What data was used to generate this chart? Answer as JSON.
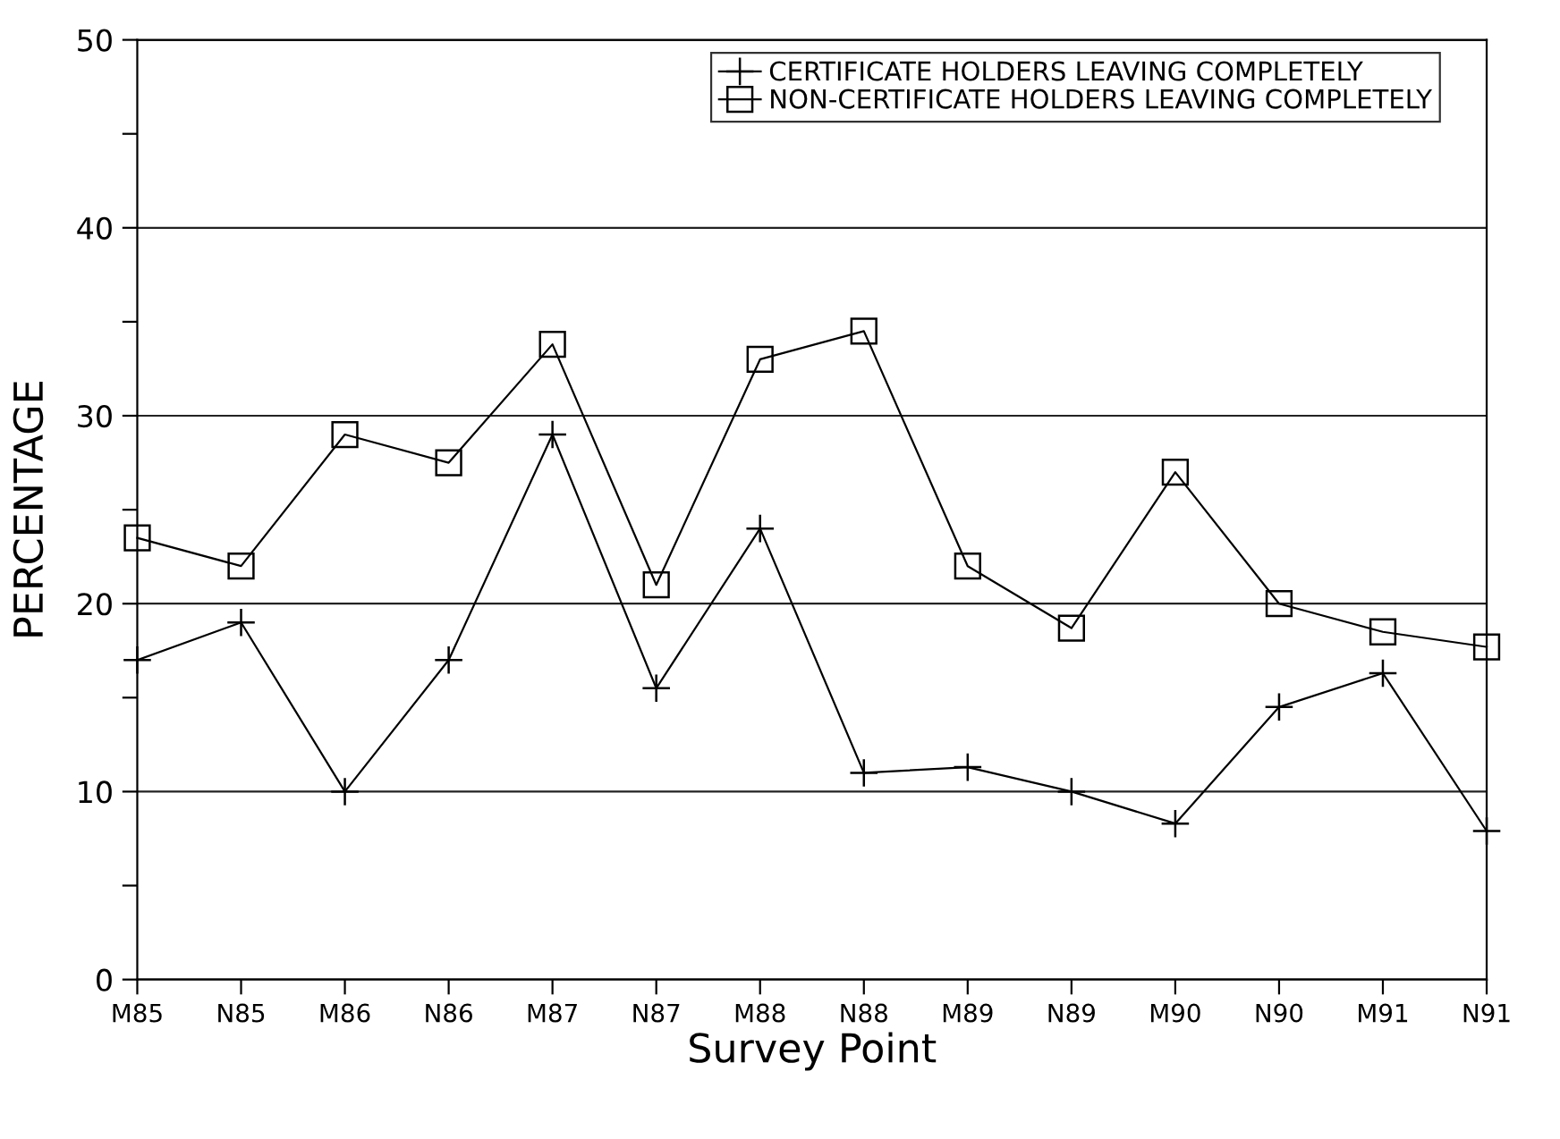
{
  "chart_data": {
    "type": "line",
    "xlabel": "Survey Point",
    "ylabel": "PERCENTAGE",
    "categories": [
      "M85",
      "N85",
      "M86",
      "N86",
      "M87",
      "N87",
      "M88",
      "N88",
      "M89",
      "N89",
      "M90",
      "N90",
      "M91",
      "N91"
    ],
    "series": [
      {
        "name": "CERTIFICATE HOLDERS LEAVING COMPLETELY",
        "color": "#000000",
        "marker": "cross",
        "values": [
          17,
          19,
          10,
          17,
          29,
          15.5,
          24,
          11,
          11.3,
          10,
          8.3,
          14.5,
          16.3,
          7.9
        ]
      },
      {
        "name": "NON-CERTIFICATE HOLDERS LEAVING COMPLETELY",
        "color": "#000000",
        "marker": "square",
        "values": [
          23.5,
          22,
          29,
          27.5,
          33.8,
          21,
          33,
          34.5,
          22,
          18.7,
          27,
          20,
          18.5,
          17.7
        ]
      }
    ],
    "ylim": [
      0,
      50
    ],
    "yticks": [
      0,
      {
        "value": 5,
        "label": null
      },
      10,
      {
        "value": 15,
        "label": null
      },
      20,
      {
        "value": 25,
        "label": null
      },
      30,
      {
        "value": 35,
        "label": null
      },
      40,
      {
        "value": 45,
        "label": null
      },
      50
    ],
    "grid": "y",
    "legend": "top right",
    "line_style": "solid"
  }
}
